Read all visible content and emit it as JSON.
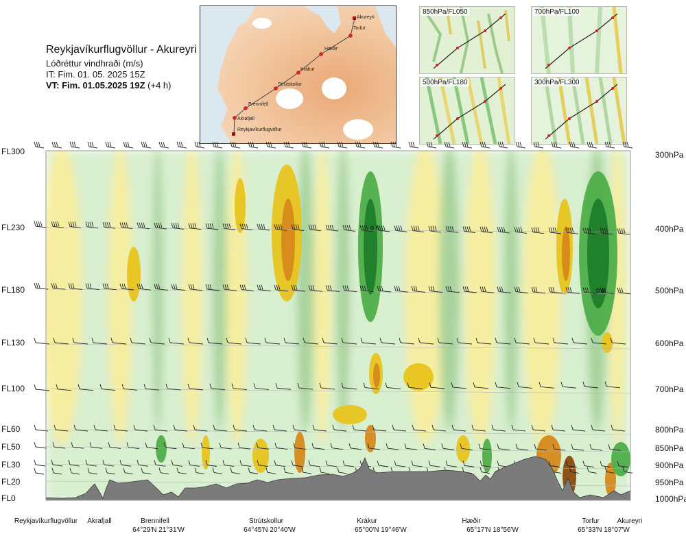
{
  "header": {
    "title": "Reykjavíkurflugvöllur - Akureyri",
    "subtitle": "Lóðréttur vindhraði (m/s)",
    "it": "IT: Fim. 01. 05. 2025 15Z",
    "vt_bold": "VT: Fim. 01.05.2025 19Z",
    "vt_rest": "(+4 h)"
  },
  "map": {
    "route": [
      "Reykjavíkurflugvöllur",
      "Akrafjall",
      "Brennifell",
      "Strútskollur",
      "Krákur",
      "Hæðir",
      "Torfur",
      "Akureyri"
    ]
  },
  "thumbnails": [
    {
      "label": "850hPa/FL050"
    },
    {
      "label": "700hPa/FL100"
    },
    {
      "label": "500hPa/FL180"
    },
    {
      "label": "300hPa/FL300"
    }
  ],
  "chart_data": {
    "type": "heatmap",
    "title": "Lóðréttur vindhraði (m/s)",
    "y_left_ticks": [
      "FL300",
      "FL230",
      "FL180",
      "FL130",
      "FL100",
      "FL60",
      "FL50",
      "FL30",
      "FL20",
      "FL0"
    ],
    "y_right_ticks": [
      "300hPa",
      "400hPa",
      "500hPa",
      "600hPa",
      "700hPa",
      "800hPa",
      "850hPa",
      "900hPa",
      "950hPa",
      "1000hPa"
    ],
    "x_locations": [
      {
        "name": "Reykjavíkurflugvöllur",
        "coord": ""
      },
      {
        "name": "Akrafjall",
        "coord": ""
      },
      {
        "name": "Brennifell",
        "coord": "64°29'N 21°31'W"
      },
      {
        "name": "Strútskollur",
        "coord": "64°45'N 20°40'W"
      },
      {
        "name": "Krákur",
        "coord": "65°00'N 19°46'W"
      },
      {
        "name": "Hæðir",
        "coord": "65°17'N 18°56'W"
      },
      {
        "name": "Torfur",
        "coord": "65°33'N 18°07'W"
      },
      {
        "name": "Akureyri",
        "coord": ""
      }
    ],
    "annotations": [
      "0.5",
      "0.6"
    ],
    "colors": {
      "strong_down": "#8a4a0e",
      "down2": "#d6891a",
      "down1": "#e8c31e",
      "weak_down": "#f6eea0",
      "weak_up": "#d8efd0",
      "up1": "#a8d39c",
      "up2": "#4fae4a",
      "strong_up": "#1e7d2a",
      "terrain": "#7b7b7b"
    }
  }
}
